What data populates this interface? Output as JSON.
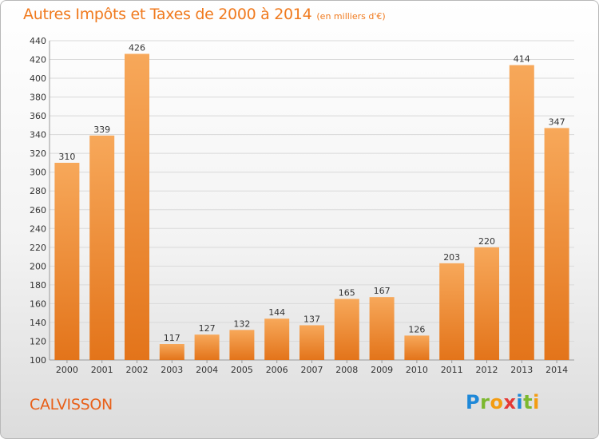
{
  "title": "Autres Impôts et Taxes de 2000 à 2014",
  "unit_label": "(en milliers d'€)",
  "commune": "CALVISSON",
  "brand": {
    "letters": [
      "P",
      "r",
      "o",
      "x",
      "i",
      "t",
      "i"
    ],
    "colors": [
      "#1e88d8",
      "#7cb82f",
      "#f39c12",
      "#e53935",
      "#1e88d8",
      "#7cb82f",
      "#f39c12"
    ]
  },
  "colors": {
    "bar_light": "#f7a85a",
    "bar_dark": "#e3741a",
    "title": "#f07a1e"
  },
  "chart_data": {
    "type": "bar",
    "title": "Autres Impôts et Taxes de 2000 à 2014",
    "xlabel": "",
    "ylabel": "",
    "categories": [
      "2000",
      "2001",
      "2002",
      "2003",
      "2004",
      "2005",
      "2006",
      "2007",
      "2008",
      "2009",
      "2010",
      "2011",
      "2012",
      "2013",
      "2014"
    ],
    "values": [
      310,
      339,
      426,
      117,
      127,
      132,
      144,
      137,
      165,
      167,
      126,
      203,
      220,
      414,
      347
    ],
    "ylim": [
      100,
      440
    ],
    "yticks": [
      100,
      120,
      140,
      160,
      180,
      200,
      220,
      240,
      260,
      280,
      300,
      320,
      340,
      360,
      380,
      400,
      420,
      440
    ],
    "grid": true,
    "legend": "none"
  }
}
